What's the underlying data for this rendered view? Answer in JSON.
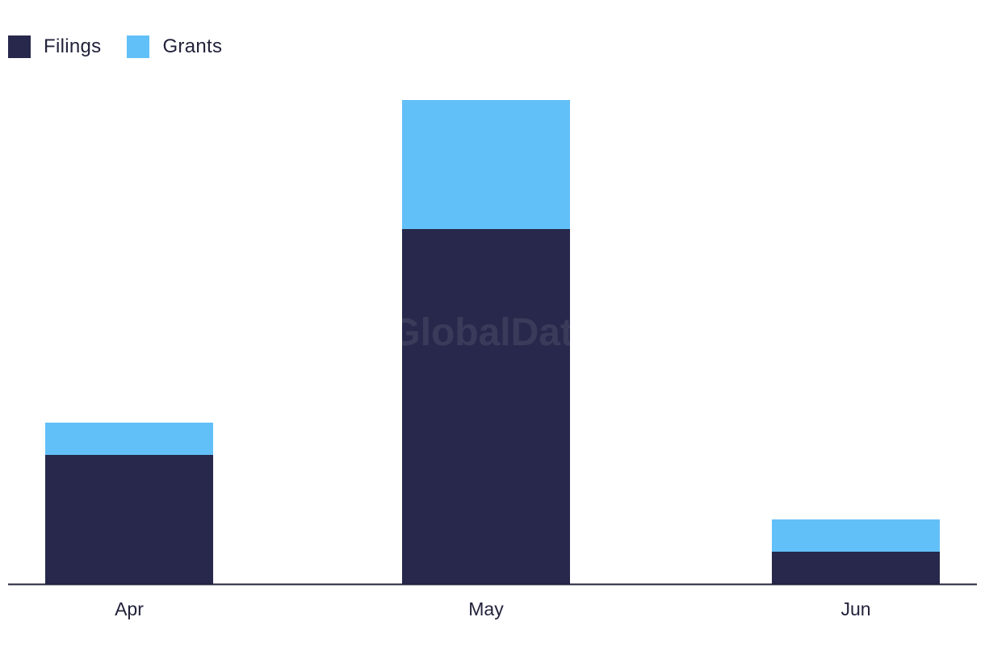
{
  "chart_data": {
    "type": "bar",
    "stacked": true,
    "categories": [
      "Apr",
      "May",
      "Jun"
    ],
    "series": [
      {
        "name": "Filings",
        "color": "#27284b",
        "values": [
          4,
          11,
          1
        ]
      },
      {
        "name": "Grants",
        "color": "#62c0f8",
        "values": [
          1,
          4,
          1
        ]
      }
    ],
    "title": "",
    "xlabel": "",
    "ylabel": "",
    "ylim": [
      0,
      15
    ],
    "grid": false,
    "legend_position": "top-left",
    "watermark": "GlobalData"
  }
}
